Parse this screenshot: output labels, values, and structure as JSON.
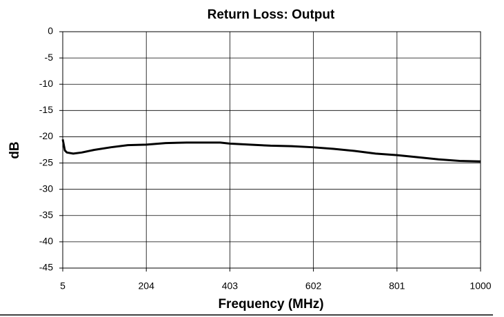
{
  "chart_data": {
    "type": "line",
    "title": "Return Loss: Output",
    "x_label": "Frequency (MHz)",
    "y_label": "dB",
    "x": [
      5,
      10,
      15,
      30,
      50,
      80,
      120,
      160,
      204,
      250,
      300,
      380,
      403,
      450,
      500,
      550,
      600,
      650,
      700,
      750,
      801,
      850,
      900,
      950,
      1000
    ],
    "series": [
      {
        "name": "Return Loss",
        "color": "#000000",
        "values": [
          -20.5,
          -22.6,
          -23.0,
          -23.2,
          -23.0,
          -22.5,
          -22.0,
          -21.6,
          -21.5,
          -21.2,
          -21.1,
          -21.1,
          -21.3,
          -21.5,
          -21.7,
          -21.8,
          -22.0,
          -22.3,
          -22.7,
          -23.2,
          -23.5,
          -23.9,
          -24.3,
          -24.6,
          -24.7
        ]
      }
    ],
    "xlim": [
      5,
      1000
    ],
    "xticks": [
      5,
      204,
      403,
      602,
      801,
      1000
    ],
    "ylim": [
      -45,
      0
    ],
    "yticks": [
      0,
      -5,
      -10,
      -15,
      -20,
      -25,
      -30,
      -35,
      -40,
      -45
    ],
    "grid": true
  }
}
